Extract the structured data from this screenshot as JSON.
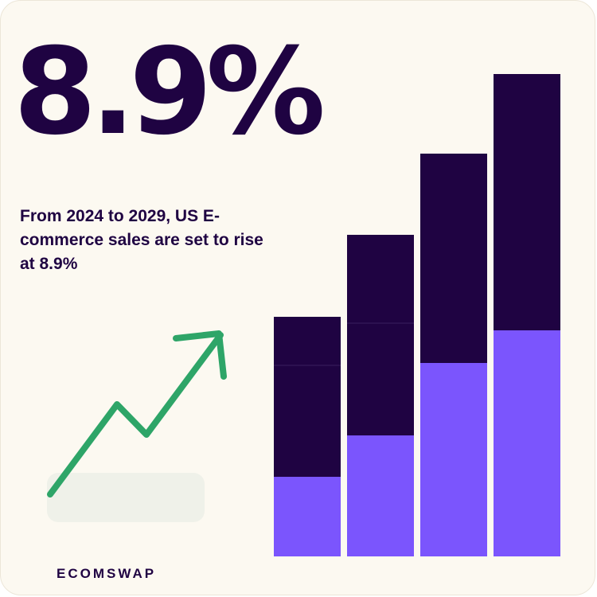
{
  "headline": {
    "stat": "8.9%"
  },
  "description": "From 2024 to 2029, US E-commerce sales are set to rise at 8.9%",
  "brand": "ECOMSWAP",
  "colors": {
    "background": "#fcf9f1",
    "dark": "#1f0342",
    "purple": "#7b55fd",
    "arrow_green": "#2ea568",
    "pill": "#eff1e9"
  },
  "icons": [
    "trend-up-arrow-icon"
  ],
  "chart_data": {
    "type": "bar",
    "stacked": true,
    "categories": [
      "",
      "",
      "",
      ""
    ],
    "series": [
      {
        "values": [
          100,
          152,
          243,
          284
        ],
        "color": "#7b55fd"
      },
      {
        "values": [
          140,
          141,
          263,
          322
        ],
        "color": "#1f0342"
      },
      {
        "values": [
          61,
          111,
          0,
          0
        ],
        "color": "#1f0342"
      }
    ],
    "axis_visible": false,
    "grid": false,
    "legend": "none"
  }
}
